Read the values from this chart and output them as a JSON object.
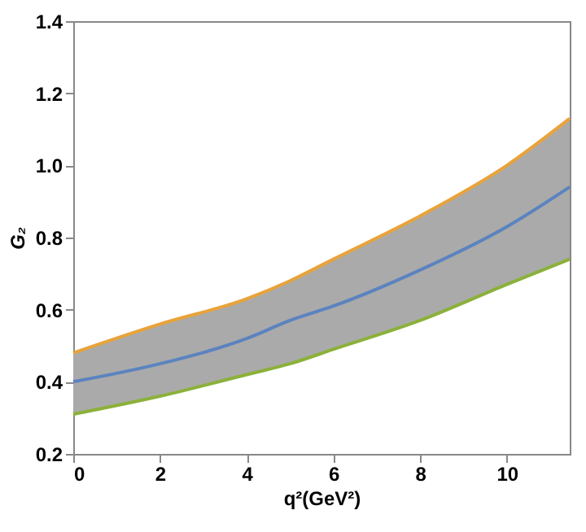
{
  "chart_data": {
    "type": "line",
    "xlabel": "q²(GeV²)",
    "ylabel": "G₂",
    "x": [
      0,
      2,
      4,
      5,
      6,
      8,
      10,
      11.45
    ],
    "series": [
      {
        "color": "#e8a33a",
        "values": [
          0.48,
          0.56,
          0.63,
          0.68,
          0.74,
          0.86,
          1.0,
          1.13
        ]
      },
      {
        "color": "#8bb13a",
        "values": [
          0.31,
          0.36,
          0.42,
          0.45,
          0.49,
          0.57,
          0.67,
          0.74
        ]
      },
      {
        "color": "#5b83c0",
        "values": [
          0.4,
          0.45,
          0.52,
          0.57,
          0.61,
          0.71,
          0.83,
          0.94
        ],
        "lower": [
          0.31,
          0.36,
          0.42,
          0.45,
          0.49,
          0.57,
          0.67,
          0.74
        ],
        "upper": [
          0.48,
          0.56,
          0.63,
          0.68,
          0.74,
          0.86,
          1.0,
          1.13
        ]
      }
    ],
    "xlim": [
      0,
      11.45
    ],
    "xticks": [
      0,
      2,
      4,
      6,
      8,
      10
    ],
    "ylim": [
      0.2,
      1.4
    ],
    "yticks": [
      {
        "value": 0.2,
        "label": "0.2"
      },
      {
        "value": 0.4,
        "label": "0.4"
      },
      {
        "value": 0.6,
        "label": "0.6"
      },
      {
        "value": 0.8,
        "label": "0.8"
      },
      {
        "value": 1.0,
        "label": "1.0"
      },
      {
        "value": 1.2,
        "label": "1.2"
      },
      {
        "value": 1.4,
        "label": "1.4"
      }
    ],
    "grid": false,
    "marker": "none",
    "line_style": "solid"
  }
}
